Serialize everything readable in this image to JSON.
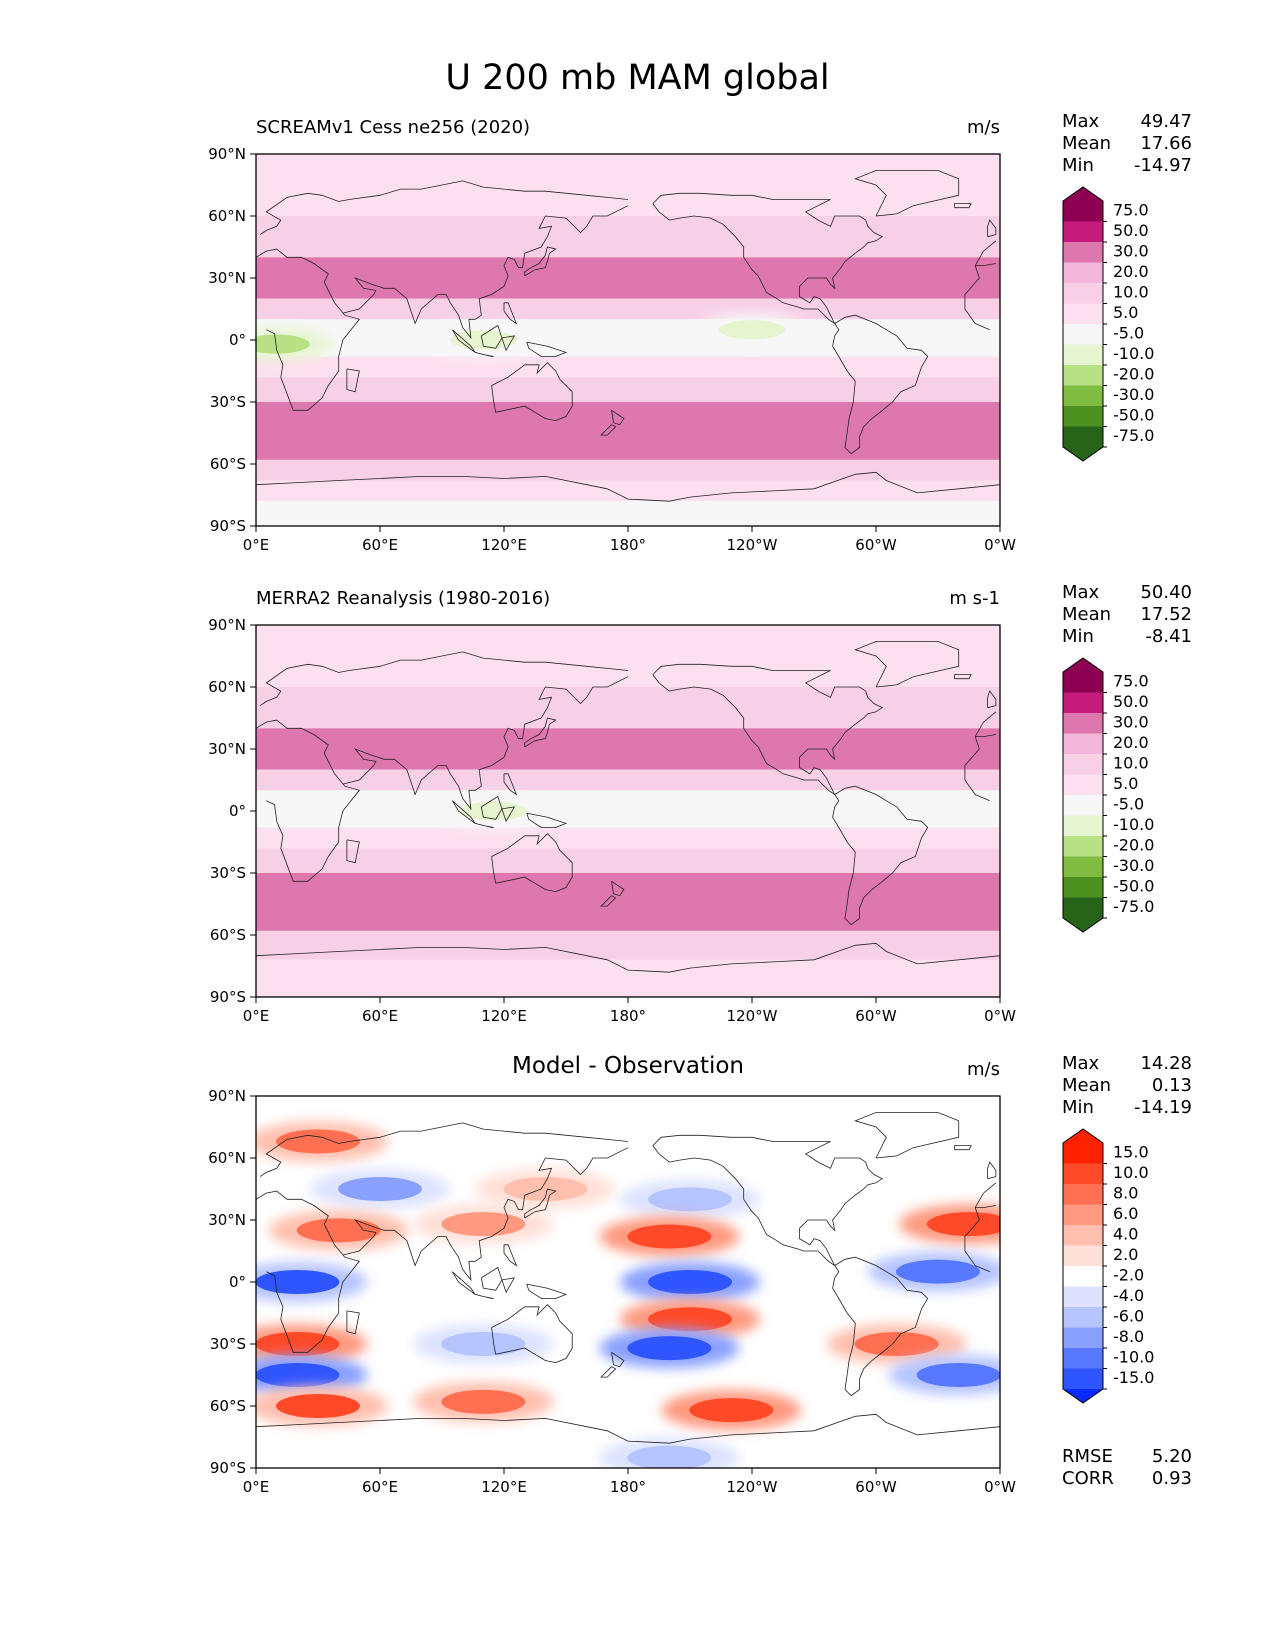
{
  "figure": {
    "title": "U 200 mb MAM global"
  },
  "axes": {
    "lat_labels": [
      "90°N",
      "60°N",
      "30°N",
      "0°",
      "30°S",
      "60°S",
      "90°S"
    ],
    "lon_labels": [
      "0°E",
      "60°E",
      "120°E",
      "180°",
      "120°W",
      "60°W",
      "0°W"
    ]
  },
  "colors": {
    "pink_scale": [
      "#276419",
      "#4d9221",
      "#7fbc41",
      "#b8e186",
      "#e6f5d0",
      "#f7f7f7",
      "#fde0ef",
      "#f1b6da",
      "#de77ae",
      "#c51b7d",
      "#8e0152"
    ],
    "diff_scale": [
      "#0a2bff",
      "#2f55ff",
      "#5878ff",
      "#8aa0ff",
      "#b6c4ff",
      "#dde3ff",
      "#ffffff",
      "#ffffff",
      "#ffe0d8",
      "#ffbfae",
      "#ff9a80",
      "#ff7052",
      "#ff4a2a",
      "#ff2200"
    ]
  },
  "chart_data": [
    {
      "type": "heatmap",
      "title": "SCREAMv1 Cess ne256 (2020)",
      "units": "m/s",
      "stats": {
        "max_label": "Max",
        "max": "49.47",
        "mean_label": "Mean",
        "mean": "17.66",
        "min_label": "Min",
        "min": "-14.97"
      },
      "colorbar_levels": [
        "75.0",
        "50.0",
        "30.0",
        "20.0",
        "10.0",
        "5.0",
        "-5.0",
        "-10.0",
        "-20.0",
        "-30.0",
        "-50.0",
        "-75.0"
      ],
      "bands": [
        {
          "lat": [
            60,
            90
          ],
          "value": 8
        },
        {
          "lat": [
            40,
            60
          ],
          "value": 15
        },
        {
          "lat": [
            20,
            40
          ],
          "value": 30
        },
        {
          "lat": [
            10,
            20
          ],
          "value": 12
        },
        {
          "lat": [
            -8,
            10
          ],
          "value": 0
        },
        {
          "lat": [
            -18,
            -8
          ],
          "value": 8
        },
        {
          "lat": [
            -30,
            -18
          ],
          "value": 18
        },
        {
          "lat": [
            -58,
            -30
          ],
          "value": 32
        },
        {
          "lat": [
            -68,
            -58
          ],
          "value": 18
        },
        {
          "lat": [
            -78,
            -68
          ],
          "value": 8
        },
        {
          "lat": [
            -90,
            -78
          ],
          "value": 0
        }
      ],
      "blobs": [
        {
          "lon": 10,
          "lat": -2,
          "value": -12
        },
        {
          "lon": 240,
          "lat": 5,
          "value": -6
        },
        {
          "lon": 110,
          "lat": 0,
          "value": -6
        }
      ]
    },
    {
      "type": "heatmap",
      "title": "MERRA2 Reanalysis (1980-2016)",
      "units": "m s-1",
      "stats": {
        "max_label": "Max",
        "max": "50.40",
        "mean_label": "Mean",
        "mean": "17.52",
        "min_label": "Min",
        "min": "-8.41"
      },
      "colorbar_levels": [
        "75.0",
        "50.0",
        "30.0",
        "20.0",
        "10.0",
        "5.0",
        "-5.0",
        "-10.0",
        "-20.0",
        "-30.0",
        "-50.0",
        "-75.0"
      ],
      "bands": [
        {
          "lat": [
            60,
            90
          ],
          "value": 8
        },
        {
          "lat": [
            40,
            60
          ],
          "value": 15
        },
        {
          "lat": [
            20,
            40
          ],
          "value": 32
        },
        {
          "lat": [
            10,
            20
          ],
          "value": 12
        },
        {
          "lat": [
            -8,
            10
          ],
          "value": 0
        },
        {
          "lat": [
            -18,
            -8
          ],
          "value": 8
        },
        {
          "lat": [
            -30,
            -18
          ],
          "value": 18
        },
        {
          "lat": [
            -58,
            -30
          ],
          "value": 30
        },
        {
          "lat": [
            -72,
            -58
          ],
          "value": 18
        },
        {
          "lat": [
            -90,
            -72
          ],
          "value": 8
        }
      ],
      "blobs": [
        {
          "lon": 115,
          "lat": 0,
          "value": -6
        }
      ]
    },
    {
      "type": "heatmap",
      "title": "Model - Observation",
      "units": "m/s",
      "stats": {
        "max_label": "Max",
        "max": "14.28",
        "mean_label": "Mean",
        "mean": "0.13",
        "min_label": "Min",
        "min": "-14.19"
      },
      "bottom_stats": {
        "rmse_label": "RMSE",
        "rmse": "5.20",
        "corr_label": "CORR",
        "corr": "0.93"
      },
      "colorbar_levels": [
        "15.0",
        "10.0",
        "8.0",
        "6.0",
        "4.0",
        "2.0",
        "-2.0",
        "-4.0",
        "-6.0",
        "-8.0",
        "-10.0",
        "-15.0"
      ],
      "bands": [
        {
          "lat": [
            -90,
            90
          ],
          "value": 0
        }
      ],
      "blobs": [
        {
          "lon": 30,
          "lat": 68,
          "value": 9
        },
        {
          "lon": 60,
          "lat": 45,
          "value": -7
        },
        {
          "lon": 140,
          "lat": 45,
          "value": 5
        },
        {
          "lon": 210,
          "lat": 40,
          "value": -6
        },
        {
          "lon": 40,
          "lat": 25,
          "value": 8
        },
        {
          "lon": 200,
          "lat": 22,
          "value": 12
        },
        {
          "lon": 345,
          "lat": 28,
          "value": 12
        },
        {
          "lon": 20,
          "lat": 0,
          "value": -11
        },
        {
          "lon": 210,
          "lat": 0,
          "value": -14
        },
        {
          "lon": 330,
          "lat": 5,
          "value": -10
        },
        {
          "lon": 210,
          "lat": -18,
          "value": 12
        },
        {
          "lon": 20,
          "lat": -30,
          "value": 12
        },
        {
          "lon": 310,
          "lat": -30,
          "value": 9
        },
        {
          "lon": 200,
          "lat": -32,
          "value": -13
        },
        {
          "lon": 20,
          "lat": -45,
          "value": -13
        },
        {
          "lon": 340,
          "lat": -45,
          "value": -9
        },
        {
          "lon": 30,
          "lat": -60,
          "value": 11
        },
        {
          "lon": 110,
          "lat": -58,
          "value": 9
        },
        {
          "lon": 230,
          "lat": -62,
          "value": 13
        },
        {
          "lon": 200,
          "lat": -85,
          "value": -5
        },
        {
          "lon": 110,
          "lat": 28,
          "value": 6
        },
        {
          "lon": 110,
          "lat": -30,
          "value": -5
        }
      ]
    }
  ]
}
